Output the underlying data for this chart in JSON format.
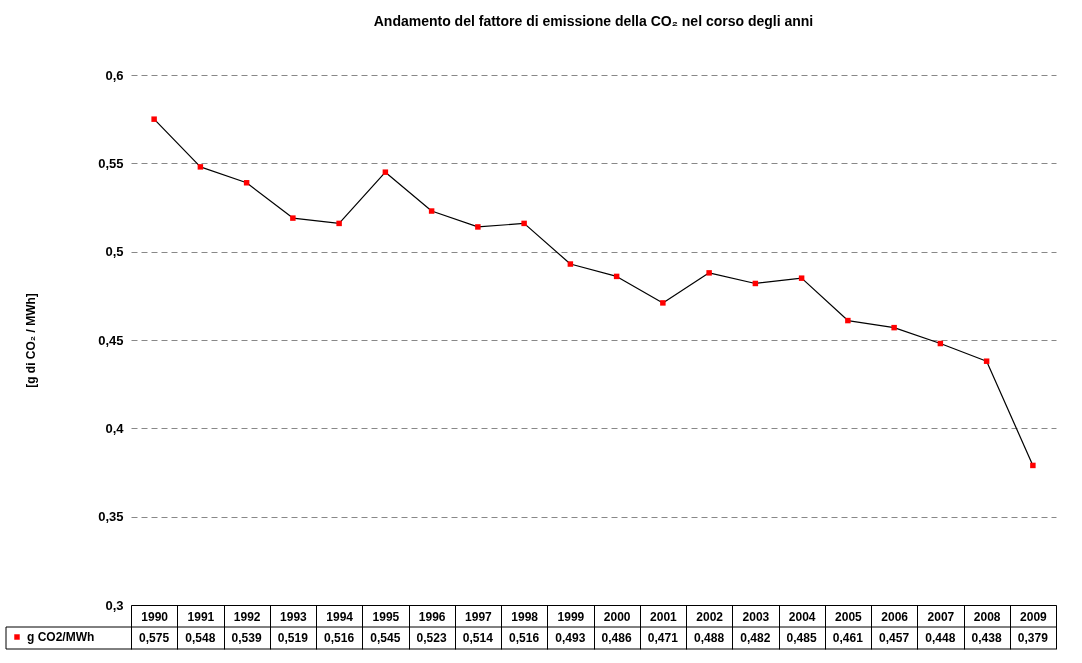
{
  "chart_data": {
    "type": "line",
    "title": "Andamento del fattore di emissione della CO₂ nel corso degli anni",
    "ylabel": "[g di CO₂ / MWh]",
    "categories": [
      "1990",
      "1991",
      "1992",
      "1993",
      "1994",
      "1995",
      "1996",
      "1997",
      "1998",
      "1999",
      "2000",
      "2001",
      "2002",
      "2003",
      "2004",
      "2005",
      "2006",
      "2007",
      "2008",
      "2009"
    ],
    "series": [
      {
        "name": "g CO2/MWh",
        "color": "#000000",
        "colors": [
          "#ff0000",
          "#ff0000",
          "#ff0000",
          "#ff0000",
          "#ff0000",
          "#ff0000",
          "#ff0000",
          "#ff0000",
          "#ff0000",
          "#ff0000",
          "#ff0000",
          "#ff0000",
          "#ff0000",
          "#ff0000",
          "#ff0000",
          "#ff0000",
          "#ff0000",
          "#ff0000",
          "#ff0000",
          "#ff0000"
        ],
        "values": [
          0.575,
          0.548,
          0.539,
          0.519,
          0.516,
          0.545,
          0.523,
          0.514,
          0.516,
          0.493,
          0.486,
          0.471,
          0.488,
          0.482,
          0.485,
          0.461,
          0.457,
          0.448,
          0.438,
          0.379
        ],
        "value_labels": [
          "0,575",
          "0,548",
          "0,539",
          "0,519",
          "0,516",
          "0,545",
          "0,523",
          "0,514",
          "0,516",
          "0,493",
          "0,486",
          "0,471",
          "0,488",
          "0,482",
          "0,485",
          "0,461",
          "0,457",
          "0,448",
          "0,438",
          "0,379"
        ]
      }
    ],
    "ylim": [
      0.3,
      0.6
    ],
    "yticks": [
      {
        "value": 0.3,
        "label": "0,3"
      },
      {
        "value": 0.35,
        "label": "0,35"
      },
      {
        "value": 0.4,
        "label": "0,4"
      },
      {
        "value": 0.45,
        "label": "0,45"
      },
      {
        "value": 0.5,
        "label": "0,5"
      },
      {
        "value": 0.55,
        "label": "0,55"
      },
      {
        "value": 0.6,
        "label": "0,6"
      }
    ],
    "grid": "y",
    "legend": "bottom left",
    "marker": "square",
    "line_style": "solid"
  }
}
